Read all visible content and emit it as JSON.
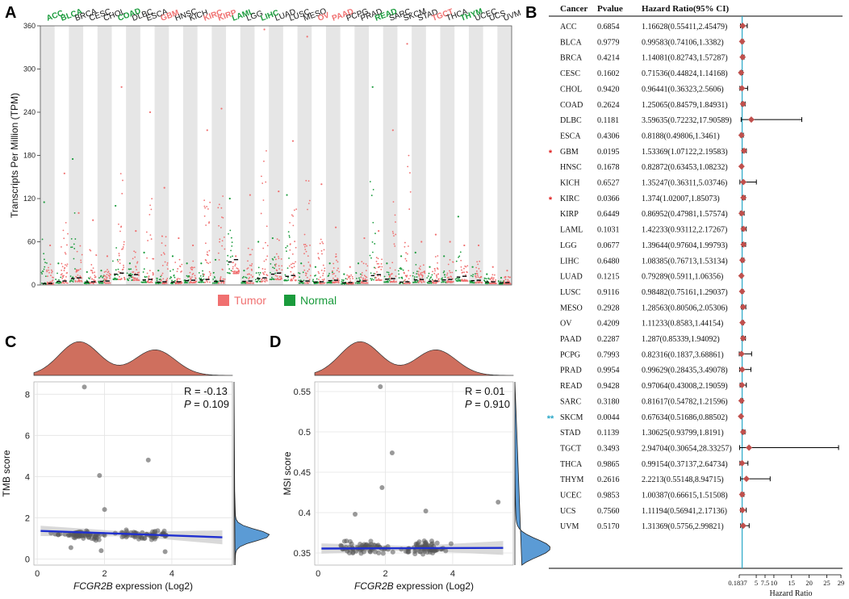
{
  "figure": {
    "panels": {
      "A": "A",
      "B": "B",
      "C": "C",
      "D": "D"
    }
  },
  "colors": {
    "tumor": "#f07070",
    "normal": "#1a9b3c",
    "black": "#111111",
    "stripe": "#e6e6e6",
    "forest_line": "#2aa8c8",
    "forest_marker": "#c0504d",
    "trend": "#1f2fd0",
    "density_top": "#cf6f5e",
    "density_side": "#5b9bd5",
    "star_red": "#e02020",
    "star_blue": "#2aa8c8"
  },
  "chart_data": [
    {
      "id": "A",
      "type": "scatter",
      "subtype": "pan-cancer strip plot",
      "ylabel": "Transcripts Per Million (TPM)",
      "ylim": [
        0,
        360
      ],
      "yticks": [
        0,
        60,
        120,
        180,
        240,
        300,
        360
      ],
      "legend": [
        "Tumor",
        "Normal"
      ],
      "legend_position": "bottom-center",
      "cancers": [
        {
          "name": "ACC",
          "label_color": "green",
          "tumor_max": 55,
          "normal_max": 115,
          "normal_median": 2
        },
        {
          "name": "BLCA",
          "label_color": "green",
          "tumor_max": 155,
          "normal_max": 30,
          "normal_median": 5
        },
        {
          "name": "BRCA",
          "label_color": "black",
          "tumor_max": 100,
          "normal_max": 175,
          "normal_median": 9
        },
        {
          "name": "CESC",
          "label_color": "black",
          "tumor_max": 90,
          "normal_max": 18,
          "normal_median": 4
        },
        {
          "name": "CHOL",
          "label_color": "black",
          "tumor_max": 40,
          "normal_max": 20,
          "normal_median": 5
        },
        {
          "name": "COAD",
          "label_color": "green",
          "tumor_max": 275,
          "normal_max": 110,
          "normal_median": 15
        },
        {
          "name": "DLBC",
          "label_color": "black",
          "tumor_max": 75,
          "normal_max": 30,
          "normal_median": 13
        },
        {
          "name": "ESCA",
          "label_color": "black",
          "tumor_max": 240,
          "normal_max": 45,
          "normal_median": 7
        },
        {
          "name": "GBM",
          "label_color": "red",
          "tumor_max": 135,
          "normal_max": 20,
          "normal_median": 4
        },
        {
          "name": "HNSC",
          "label_color": "black",
          "tumor_max": 65,
          "normal_max": 40,
          "normal_median": 4
        },
        {
          "name": "KICH",
          "label_color": "black",
          "tumor_max": 55,
          "normal_max": 30,
          "normal_median": 6
        },
        {
          "name": "KIRC",
          "label_color": "red",
          "tumor_max": 215,
          "normal_max": 30,
          "normal_median": 7
        },
        {
          "name": "KIRP",
          "label_color": "red",
          "tumor_max": 245,
          "normal_max": 35,
          "normal_median": 5
        },
        {
          "name": "LAML",
          "label_color": "green",
          "tumor_max": 40,
          "normal_max": 120,
          "normal_median": 32
        },
        {
          "name": "LGG",
          "label_color": "black",
          "tumor_max": 125,
          "normal_max": 20,
          "normal_median": 5
        },
        {
          "name": "LIHC",
          "label_color": "green",
          "tumor_max": 355,
          "normal_max": 60,
          "normal_median": 9
        },
        {
          "name": "LUAD",
          "label_color": "black",
          "tumor_max": 130,
          "normal_max": 65,
          "normal_median": 15
        },
        {
          "name": "LUSC",
          "label_color": "black",
          "tumor_max": 200,
          "normal_max": 125,
          "normal_median": 12
        },
        {
          "name": "MESO",
          "label_color": "black",
          "tumor_max": 345,
          "normal_max": 30,
          "normal_median": 5
        },
        {
          "name": "OV",
          "label_color": "red",
          "tumor_max": 140,
          "normal_max": 25,
          "normal_median": 4
        },
        {
          "name": "PAAD",
          "label_color": "red",
          "tumor_max": 80,
          "normal_max": 30,
          "normal_median": 6
        },
        {
          "name": "PCPG",
          "label_color": "black",
          "tumor_max": 25,
          "normal_max": 15,
          "normal_median": 3
        },
        {
          "name": "PRAD",
          "label_color": "black",
          "tumor_max": 65,
          "normal_max": 30,
          "normal_median": 5
        },
        {
          "name": "READ",
          "label_color": "green",
          "tumor_max": 75,
          "normal_max": 275,
          "normal_median": 13
        },
        {
          "name": "SARC",
          "label_color": "black",
          "tumor_max": 215,
          "normal_max": 30,
          "normal_median": 8
        },
        {
          "name": "SKCM",
          "label_color": "black",
          "tumor_max": 335,
          "normal_max": 40,
          "normal_median": 4
        },
        {
          "name": "STAD",
          "label_color": "black",
          "tumor_max": 60,
          "normal_max": 45,
          "normal_median": 7
        },
        {
          "name": "TGCT",
          "label_color": "red",
          "tumor_max": 70,
          "normal_max": 25,
          "normal_median": 5
        },
        {
          "name": "THCA",
          "label_color": "black",
          "tumor_max": 60,
          "normal_max": 40,
          "normal_median": 7
        },
        {
          "name": "THYM",
          "label_color": "green",
          "tumor_max": 55,
          "normal_max": 95,
          "normal_median": 11
        },
        {
          "name": "UCEC",
          "label_color": "black",
          "tumor_max": 55,
          "normal_max": 25,
          "normal_median": 6
        },
        {
          "name": "UCS",
          "label_color": "black",
          "tumor_max": 25,
          "normal_max": 15,
          "normal_median": 4
        },
        {
          "name": "UVM",
          "label_color": "black",
          "tumor_max": 20,
          "normal_max": 10,
          "normal_median": 3
        }
      ]
    },
    {
      "id": "B",
      "type": "forest",
      "headers": [
        "Cancer",
        "Pvalue",
        "Hazard Ratio(95% CI)"
      ],
      "xlabel": "Hazard Ratio",
      "xticks": [
        "0.1837",
        "5",
        "7.5",
        "10",
        "15",
        "20",
        "25",
        "29"
      ],
      "xtick_values": [
        0.1837,
        5,
        7.5,
        10,
        15,
        20,
        25,
        29
      ],
      "xlim": [
        0.1837,
        29
      ],
      "reference_line": 1,
      "rows": [
        {
          "cancer": "ACC",
          "pvalue": "0.6854",
          "ci_text": "1.16628(0.55411,2.45479)",
          "hr": 1.16628,
          "lo": 0.55411,
          "hi": 2.45479,
          "sig": ""
        },
        {
          "cancer": "BLCA",
          "pvalue": "0.9779",
          "ci_text": "0.99583(0.74106,1.3382)",
          "hr": 0.99583,
          "lo": 0.74106,
          "hi": 1.3382,
          "sig": ""
        },
        {
          "cancer": "BRCA",
          "pvalue": "0.4214",
          "ci_text": "1.14081(0.82743,1.57287)",
          "hr": 1.14081,
          "lo": 0.82743,
          "hi": 1.57287,
          "sig": ""
        },
        {
          "cancer": "CESC",
          "pvalue": "0.1602",
          "ci_text": "0.71536(0.44824,1.14168)",
          "hr": 0.71536,
          "lo": 0.44824,
          "hi": 1.14168,
          "sig": ""
        },
        {
          "cancer": "CHOL",
          "pvalue": "0.9420",
          "ci_text": "0.96441(0.36323,2.5606)",
          "hr": 0.96441,
          "lo": 0.36323,
          "hi": 2.5606,
          "sig": ""
        },
        {
          "cancer": "COAD",
          "pvalue": "0.2624",
          "ci_text": "1.25065(0.84579,1.84931)",
          "hr": 1.25065,
          "lo": 0.84579,
          "hi": 1.84931,
          "sig": ""
        },
        {
          "cancer": "DLBC",
          "pvalue": "0.1181",
          "ci_text": "3.59635(0.72232,17.90589)",
          "hr": 3.59635,
          "lo": 0.72232,
          "hi": 17.90589,
          "sig": ""
        },
        {
          "cancer": "ESCA",
          "pvalue": "0.4306",
          "ci_text": "0.8188(0.49806,1.3461)",
          "hr": 0.8188,
          "lo": 0.49806,
          "hi": 1.3461,
          "sig": ""
        },
        {
          "cancer": "GBM",
          "pvalue": "0.0195",
          "ci_text": "1.53369(1.07122,2.19583)",
          "hr": 1.53369,
          "lo": 1.07122,
          "hi": 2.19583,
          "sig": "*"
        },
        {
          "cancer": "HNSC",
          "pvalue": "0.1678",
          "ci_text": "0.82872(0.63453,1.08232)",
          "hr": 0.82872,
          "lo": 0.63453,
          "hi": 1.08232,
          "sig": ""
        },
        {
          "cancer": "KICH",
          "pvalue": "0.6527",
          "ci_text": "1.35247(0.36311,5.03746)",
          "hr": 1.35247,
          "lo": 0.36311,
          "hi": 5.03746,
          "sig": ""
        },
        {
          "cancer": "KIRC",
          "pvalue": "0.0366",
          "ci_text": "1.374(1.02007,1.85073)",
          "hr": 1.374,
          "lo": 1.02007,
          "hi": 1.85073,
          "sig": "*"
        },
        {
          "cancer": "KIRP",
          "pvalue": "0.6449",
          "ci_text": "0.86952(0.47981,1.57574)",
          "hr": 0.86952,
          "lo": 0.47981,
          "hi": 1.57574,
          "sig": ""
        },
        {
          "cancer": "LAML",
          "pvalue": "0.1031",
          "ci_text": "1.42233(0.93112,2.17267)",
          "hr": 1.42233,
          "lo": 0.93112,
          "hi": 2.17267,
          "sig": ""
        },
        {
          "cancer": "LGG",
          "pvalue": "0.0677",
          "ci_text": "1.39644(0.97604,1.99793)",
          "hr": 1.39644,
          "lo": 0.97604,
          "hi": 1.99793,
          "sig": ""
        },
        {
          "cancer": "LIHC",
          "pvalue": "0.6480",
          "ci_text": "1.08385(0.76713,1.53134)",
          "hr": 1.08385,
          "lo": 0.76713,
          "hi": 1.53134,
          "sig": ""
        },
        {
          "cancer": "LUAD",
          "pvalue": "0.1215",
          "ci_text": "0.79289(0.5911,1.06356)",
          "hr": 0.79289,
          "lo": 0.5911,
          "hi": 1.06356,
          "sig": ""
        },
        {
          "cancer": "LUSC",
          "pvalue": "0.9116",
          "ci_text": "0.98482(0.75161,1.29037)",
          "hr": 0.98482,
          "lo": 0.75161,
          "hi": 1.29037,
          "sig": ""
        },
        {
          "cancer": "MESO",
          "pvalue": "0.2928",
          "ci_text": "1.28563(0.80506,2.05306)",
          "hr": 1.28563,
          "lo": 0.80506,
          "hi": 2.05306,
          "sig": ""
        },
        {
          "cancer": "OV",
          "pvalue": "0.4209",
          "ci_text": "1.11233(0.8583,1.44154)",
          "hr": 1.11233,
          "lo": 0.8583,
          "hi": 1.44154,
          "sig": ""
        },
        {
          "cancer": "PAAD",
          "pvalue": "0.2287",
          "ci_text": "1.287(0.85339,1.94092)",
          "hr": 1.287,
          "lo": 0.85339,
          "hi": 1.94092,
          "sig": ""
        },
        {
          "cancer": "PCPG",
          "pvalue": "0.7993",
          "ci_text": "0.82316(0.1837,3.68861)",
          "hr": 0.82316,
          "lo": 0.1837,
          "hi": 3.68861,
          "sig": ""
        },
        {
          "cancer": "PRAD",
          "pvalue": "0.9954",
          "ci_text": "0.99629(0.28435,3.49078)",
          "hr": 0.99629,
          "lo": 0.28435,
          "hi": 3.49078,
          "sig": ""
        },
        {
          "cancer": "READ",
          "pvalue": "0.9428",
          "ci_text": "0.97064(0.43008,2.19059)",
          "hr": 0.97064,
          "lo": 0.43008,
          "hi": 2.19059,
          "sig": ""
        },
        {
          "cancer": "SARC",
          "pvalue": "0.3180",
          "ci_text": "0.81617(0.54782,1.21596)",
          "hr": 0.81617,
          "lo": 0.54782,
          "hi": 1.21596,
          "sig": ""
        },
        {
          "cancer": "SKCM",
          "pvalue": "0.0044",
          "ci_text": "0.67634(0.51686,0.88502)",
          "hr": 0.67634,
          "lo": 0.51686,
          "hi": 0.88502,
          "sig": "**"
        },
        {
          "cancer": "STAD",
          "pvalue": "0.1139",
          "ci_text": "1.30625(0.93799,1.8191)",
          "hr": 1.30625,
          "lo": 0.93799,
          "hi": 1.8191,
          "sig": ""
        },
        {
          "cancer": "TGCT",
          "pvalue": "0.3493",
          "ci_text": "2.94704(0.30654,28.33257)",
          "hr": 2.94704,
          "lo": 0.30654,
          "hi": 28.33257,
          "sig": ""
        },
        {
          "cancer": "THCA",
          "pvalue": "0.9865",
          "ci_text": "0.99154(0.37137,2.64734)",
          "hr": 0.99154,
          "lo": 0.37137,
          "hi": 2.64734,
          "sig": ""
        },
        {
          "cancer": "THYM",
          "pvalue": "0.2616",
          "ci_text": "2.2213(0.55148,8.94715)",
          "hr": 2.2213,
          "lo": 0.55148,
          "hi": 8.94715,
          "sig": ""
        },
        {
          "cancer": "UCEC",
          "pvalue": "0.9853",
          "ci_text": "1.00387(0.66615,1.51508)",
          "hr": 1.00387,
          "lo": 0.66615,
          "hi": 1.51508,
          "sig": ""
        },
        {
          "cancer": "UCS",
          "pvalue": "0.7560",
          "ci_text": "1.11194(0.56941,2.17136)",
          "hr": 1.11194,
          "lo": 0.56941,
          "hi": 2.17136,
          "sig": ""
        },
        {
          "cancer": "UVM",
          "pvalue": "0.5170",
          "ci_text": "1.31369(0.5756,2.99821)",
          "hr": 1.31369,
          "lo": 0.5756,
          "hi": 2.99821,
          "sig": ""
        }
      ]
    },
    {
      "id": "C",
      "type": "scatter",
      "xlabel_gene": "FCGR2B",
      "xlabel_rest": " expression (Log2)",
      "ylabel": "TMB score",
      "xlim": [
        -0.1,
        5.8
      ],
      "ylim": [
        -0.3,
        8.6
      ],
      "xticks": [
        0,
        2,
        4
      ],
      "yticks": [
        0,
        2,
        4,
        6,
        8
      ],
      "r_text": "R = -0.13",
      "p_label": "P",
      "p_text": " = 0.109",
      "trend": {
        "x0": 0.1,
        "y0": 1.36,
        "x1": 5.5,
        "y1": 1.05
      },
      "outliers": [
        [
          1.4,
          8.35
        ],
        [
          3.3,
          4.8
        ],
        [
          1.85,
          4.05
        ],
        [
          2.0,
          2.4
        ],
        [
          1.0,
          0.55
        ],
        [
          3.8,
          0.35
        ],
        [
          1.9,
          0.4
        ]
      ],
      "n_points": 120,
      "cluster_center": 1.15,
      "cluster_spread": 0.3,
      "density_peaks": [
        1.25,
        3.5
      ]
    },
    {
      "id": "D",
      "type": "scatter",
      "xlabel_gene": "FCGR2B",
      "xlabel_rest": " expression (Log2)",
      "ylabel": "MSI score",
      "xlim": [
        -0.1,
        5.8
      ],
      "ylim": [
        0.335,
        0.562
      ],
      "xticks": [
        0,
        2,
        4
      ],
      "yticks": [
        0.35,
        0.4,
        0.45,
        0.5,
        0.55
      ],
      "r_text": "R = 0.01",
      "p_label": "P",
      "p_text": " = 0.910",
      "trend": {
        "x0": 0.1,
        "y0": 0.3555,
        "x1": 5.5,
        "y1": 0.3563
      },
      "outliers": [
        [
          1.85,
          0.556
        ],
        [
          2.2,
          0.474
        ],
        [
          1.9,
          0.431
        ],
        [
          5.35,
          0.413
        ],
        [
          3.2,
          0.402
        ],
        [
          1.1,
          0.398
        ]
      ],
      "n_points": 130,
      "cluster_center": 0.356,
      "cluster_spread": 0.012,
      "density_peaks": [
        1.25,
        3.5
      ]
    }
  ]
}
